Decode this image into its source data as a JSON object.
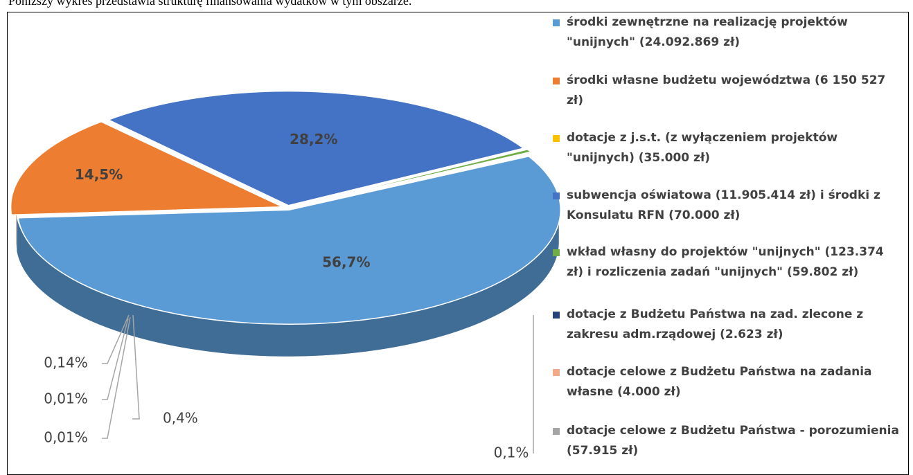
{
  "caption": "Poniższy wykres przedstawia strukturę finansowania wydatków w tym obszarze.",
  "chart_data": {
    "type": "pie",
    "categories": [
      "środki zewnętrzne na realizację projektów \"unijnych\" (24.092.869 zł)",
      "środki własne budżetu województwa (6 150 527 zł)",
      "dotacje z j.s.t. (z wyłączeniem projektów \"unijnych) (35.000 zł)",
      "subwencja oświatowa (11.905.414 zł) i środki z Konsulatu RFN (70.000 zł)",
      "wkład własny do projektów \"unijnych\" (123.374 zł) i rozliczenia zadań \"unijnych\" (59.802 zł)",
      "dotacje z Budżetu Państwa na zad. zlecone z zakresu adm.rządowej (2.623 zł)",
      "dotacje celowe z Budżetu Państwa na zadania własne (4.000 zł)",
      "dotacje celowe z Budżetu Państwa - porozumienia (57.915 zł)"
    ],
    "values": [
      56.7,
      14.5,
      0.1,
      28.2,
      0.4,
      0.01,
      0.01,
      0.14
    ],
    "value_labels": [
      "56,7%",
      "14,5%",
      "0,1%",
      "28,2%",
      "0,4%",
      "0,01%",
      "0,01%",
      "0,14%"
    ],
    "colors": [
      "#5b9bd5",
      "#ed7d31",
      "#ffc000",
      "#4472c4",
      "#70ad47",
      "#264478",
      "#f4a98b",
      "#a5a5a5"
    ],
    "legend": "right"
  }
}
